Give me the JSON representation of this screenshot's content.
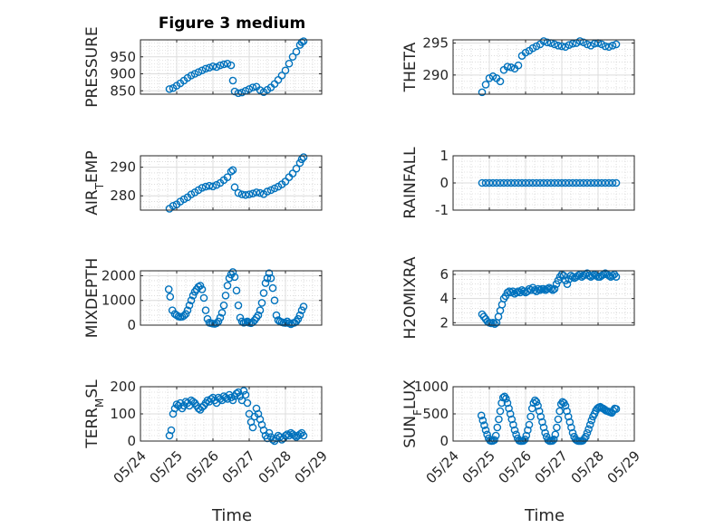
{
  "figure_title": "Figure 3 medium",
  "x_axis_label": "Time",
  "x_tick_labels": [
    "05/24",
    "05/25",
    "05/26",
    "05/27",
    "05/28",
    "05/29"
  ],
  "marker_color": "#0072BD",
  "chart_data": [
    {
      "type": "scatter",
      "title": "Figure 3 medium",
      "ylabel": "PRESSURE",
      "xlim": [
        "05/24",
        "05/29"
      ],
      "ylim": [
        840,
        1000
      ],
      "yticks": [
        850,
        900,
        950
      ],
      "x_day": [
        24.8,
        24.9,
        25.0,
        25.1,
        25.2,
        25.3,
        25.4,
        25.5,
        25.6,
        25.7,
        25.8,
        25.9,
        26.0,
        26.1,
        26.2,
        26.3,
        26.4,
        26.5,
        26.55,
        26.6,
        26.7,
        26.8,
        26.9,
        27.0,
        27.1,
        27.2,
        27.3,
        27.4,
        27.5,
        27.6,
        27.7,
        27.8,
        27.9,
        28.0,
        28.1,
        28.2,
        28.3,
        28.4,
        28.45,
        28.5
      ],
      "values": [
        855,
        858,
        865,
        872,
        880,
        888,
        895,
        900,
        905,
        910,
        915,
        918,
        922,
        920,
        925,
        928,
        930,
        925,
        880,
        848,
        843,
        845,
        850,
        855,
        860,
        862,
        852,
        846,
        853,
        860,
        870,
        882,
        895,
        910,
        930,
        950,
        965,
        985,
        993,
        996
      ]
    },
    {
      "type": "scatter",
      "ylabel": "THETA",
      "xlim": [
        "05/24",
        "05/29"
      ],
      "ylim": [
        287,
        295.5
      ],
      "yticks": [
        290,
        295
      ],
      "x_day": [
        24.8,
        24.9,
        25.0,
        25.1,
        25.2,
        25.3,
        25.4,
        25.5,
        25.6,
        25.7,
        25.8,
        25.9,
        26.0,
        26.1,
        26.2,
        26.3,
        26.4,
        26.5,
        26.6,
        26.7,
        26.8,
        26.9,
        27.0,
        27.1,
        27.2,
        27.3,
        27.4,
        27.5,
        27.6,
        27.7,
        27.8,
        27.9,
        28.0,
        28.1,
        28.2,
        28.3,
        28.4,
        28.5
      ],
      "values": [
        287.3,
        288.5,
        289.5,
        289.8,
        289.5,
        289.0,
        290.8,
        291.3,
        291.2,
        291.0,
        291.5,
        293.0,
        293.5,
        293.8,
        294.2,
        294.5,
        294.8,
        295.3,
        295.1,
        295.0,
        294.8,
        294.6,
        294.5,
        294.4,
        294.7,
        294.9,
        295.0,
        295.3,
        295.1,
        294.8,
        294.6,
        294.9,
        295.0,
        294.8,
        294.5,
        294.4,
        294.6,
        294.8
      ]
    },
    {
      "type": "scatter",
      "ylabel": "AIR_TEMP",
      "xlim": [
        "05/24",
        "05/29"
      ],
      "ylim": [
        275,
        294
      ],
      "yticks": [
        280,
        290
      ],
      "x_day": [
        24.8,
        24.9,
        25.0,
        25.1,
        25.2,
        25.3,
        25.4,
        25.5,
        25.6,
        25.7,
        25.8,
        25.9,
        26.0,
        26.1,
        26.2,
        26.3,
        26.4,
        26.5,
        26.55,
        26.6,
        26.7,
        26.8,
        26.9,
        27.0,
        27.1,
        27.2,
        27.3,
        27.4,
        27.5,
        27.6,
        27.7,
        27.8,
        27.9,
        28.0,
        28.1,
        28.2,
        28.3,
        28.4,
        28.45,
        28.5
      ],
      "values": [
        275.5,
        276.5,
        277.0,
        278.0,
        278.8,
        279.5,
        280.5,
        281.2,
        282.0,
        282.8,
        283.2,
        283.5,
        283.3,
        283.8,
        284.5,
        285.5,
        286.5,
        288.5,
        289.0,
        283.0,
        281.0,
        280.5,
        280.3,
        280.5,
        280.8,
        281.2,
        281.0,
        280.6,
        281.5,
        282.0,
        282.6,
        283.2,
        284.0,
        285.0,
        286.5,
        287.8,
        289.5,
        291.5,
        292.8,
        293.5
      ]
    },
    {
      "type": "scatter",
      "ylabel": "RAINFALL",
      "xlim": [
        "05/24",
        "05/29"
      ],
      "ylim": [
        -1,
        1
      ],
      "yticks": [
        -1,
        0,
        1
      ],
      "x_day": [
        24.8,
        24.9,
        25.0,
        25.1,
        25.2,
        25.3,
        25.4,
        25.5,
        25.6,
        25.7,
        25.8,
        25.9,
        26.0,
        26.1,
        26.2,
        26.3,
        26.4,
        26.5,
        26.6,
        26.7,
        26.8,
        26.9,
        27.0,
        27.1,
        27.2,
        27.3,
        27.4,
        27.5,
        27.6,
        27.7,
        27.8,
        27.9,
        28.0,
        28.1,
        28.2,
        28.3,
        28.4,
        28.5
      ],
      "values": [
        0,
        0,
        0,
        0,
        0,
        0,
        0,
        0,
        0,
        0,
        0,
        0,
        0,
        0,
        0,
        0,
        0,
        0,
        0,
        0,
        0,
        0,
        0,
        0,
        0,
        0,
        0,
        0,
        0,
        0,
        0,
        0,
        0,
        0,
        0,
        0,
        0,
        0
      ]
    },
    {
      "type": "scatter",
      "ylabel": "MIXDEPTH",
      "xlim": [
        "05/24",
        "05/29"
      ],
      "ylim": [
        0,
        2200
      ],
      "yticks": [
        0,
        1000,
        2000
      ],
      "x_day": [
        24.78,
        24.82,
        24.88,
        24.95,
        25.0,
        25.05,
        25.1,
        25.15,
        25.2,
        25.25,
        25.3,
        25.35,
        25.4,
        25.45,
        25.5,
        25.55,
        25.6,
        25.65,
        25.7,
        25.75,
        25.8,
        25.85,
        25.9,
        25.95,
        26.0,
        26.05,
        26.1,
        26.15,
        26.2,
        26.25,
        26.3,
        26.35,
        26.4,
        26.45,
        26.5,
        26.55,
        26.6,
        26.65,
        26.7,
        26.75,
        26.8,
        26.85,
        26.9,
        26.95,
        27.0,
        27.05,
        27.1,
        27.15,
        27.2,
        27.25,
        27.3,
        27.35,
        27.4,
        27.45,
        27.5,
        27.55,
        27.6,
        27.65,
        27.7,
        27.75,
        27.8,
        27.85,
        27.9,
        27.95,
        28.0,
        28.05,
        28.1,
        28.15,
        28.2,
        28.25,
        28.3,
        28.35,
        28.4,
        28.45,
        28.5
      ],
      "values": [
        1450,
        1150,
        600,
        450,
        400,
        350,
        330,
        340,
        380,
        450,
        600,
        800,
        1000,
        1200,
        1350,
        1450,
        1550,
        1600,
        1450,
        1100,
        600,
        250,
        100,
        80,
        60,
        50,
        80,
        150,
        300,
        500,
        800,
        1200,
        1600,
        1900,
        2050,
        2150,
        1950,
        1400,
        800,
        300,
        150,
        100,
        120,
        150,
        100,
        80,
        120,
        200,
        300,
        400,
        600,
        900,
        1300,
        1700,
        1900,
        2100,
        1900,
        1500,
        1000,
        400,
        200,
        150,
        120,
        100,
        90,
        150,
        80,
        40,
        80,
        100,
        150,
        250,
        400,
        600,
        750
      ]
    },
    {
      "type": "scatter",
      "ylabel": "H2OMIXRA",
      "xlim": [
        "05/24",
        "05/29"
      ],
      "ylim": [
        1.8,
        6.3
      ],
      "yticks": [
        2,
        4,
        6
      ],
      "x_day": [
        24.8,
        24.85,
        24.9,
        24.95,
        25.0,
        25.05,
        25.1,
        25.15,
        25.2,
        25.25,
        25.3,
        25.35,
        25.4,
        25.45,
        25.5,
        25.55,
        25.6,
        25.65,
        25.7,
        25.75,
        25.8,
        25.85,
        25.9,
        25.95,
        26.0,
        26.05,
        26.1,
        26.15,
        26.2,
        26.25,
        26.3,
        26.35,
        26.4,
        26.45,
        26.5,
        26.55,
        26.6,
        26.65,
        26.7,
        26.75,
        26.8,
        26.85,
        26.9,
        26.95,
        27.0,
        27.05,
        27.1,
        27.15,
        27.2,
        27.25,
        27.3,
        27.35,
        27.4,
        27.45,
        27.5,
        27.55,
        27.6,
        27.65,
        27.7,
        27.75,
        27.8,
        27.85,
        27.9,
        27.95,
        28.0,
        28.05,
        28.1,
        28.15,
        28.2,
        28.25,
        28.3,
        28.35,
        28.4,
        28.45,
        28.5
      ],
      "values": [
        2.7,
        2.5,
        2.3,
        2.1,
        2.0,
        1.95,
        2.0,
        1.9,
        2.0,
        2.5,
        3.0,
        3.5,
        4.0,
        4.2,
        4.5,
        4.6,
        4.5,
        4.6,
        4.4,
        4.5,
        4.6,
        4.5,
        4.7,
        4.6,
        4.5,
        4.6,
        4.8,
        4.7,
        4.9,
        4.7,
        4.6,
        4.8,
        4.7,
        4.8,
        4.8,
        4.7,
        4.8,
        4.9,
        4.8,
        4.7,
        4.8,
        5.2,
        5.5,
        5.8,
        6.0,
        5.9,
        5.5,
        5.2,
        5.6,
        5.9,
        5.8,
        5.7,
        5.8,
        5.9,
        6.0,
        5.8,
        5.9,
        6.0,
        6.1,
        5.9,
        5.8,
        5.9,
        6.0,
        5.9,
        5.8,
        5.8,
        5.9,
        6.0,
        6.1,
        6.0,
        5.9,
        5.8,
        5.9,
        6.0,
        5.8
      ]
    },
    {
      "type": "scatter",
      "ylabel": "TERR_MSL",
      "xlim": [
        "05/24",
        "05/29"
      ],
      "ylim": [
        0,
        200
      ],
      "yticks": [
        0,
        100,
        200
      ],
      "x_day": [
        24.8,
        24.85,
        24.9,
        24.95,
        25.0,
        25.05,
        25.1,
        25.15,
        25.2,
        25.25,
        25.3,
        25.35,
        25.4,
        25.45,
        25.5,
        25.55,
        25.6,
        25.65,
        25.7,
        25.75,
        25.8,
        25.85,
        25.9,
        25.95,
        26.0,
        26.05,
        26.1,
        26.15,
        26.2,
        26.25,
        26.3,
        26.35,
        26.4,
        26.45,
        26.5,
        26.55,
        26.6,
        26.65,
        26.7,
        26.75,
        26.8,
        26.85,
        26.9,
        26.95,
        27.0,
        27.05,
        27.1,
        27.15,
        27.2,
        27.25,
        27.3,
        27.35,
        27.4,
        27.45,
        27.5,
        27.55,
        27.6,
        27.65,
        27.7,
        27.75,
        27.8,
        27.85,
        27.9,
        27.95,
        28.0,
        28.05,
        28.1,
        28.15,
        28.2,
        28.25,
        28.3,
        28.35,
        28.4,
        28.45,
        28.5
      ],
      "values": [
        20,
        40,
        100,
        120,
        135,
        130,
        140,
        120,
        130,
        145,
        140,
        130,
        150,
        145,
        140,
        130,
        120,
        115,
        125,
        130,
        140,
        150,
        145,
        155,
        160,
        150,
        140,
        160,
        155,
        150,
        165,
        160,
        155,
        170,
        160,
        150,
        165,
        175,
        180,
        165,
        150,
        185,
        170,
        140,
        100,
        70,
        50,
        90,
        120,
        100,
        80,
        60,
        40,
        20,
        10,
        30,
        15,
        5,
        0,
        10,
        20,
        15,
        5,
        10,
        20,
        25,
        20,
        30,
        25,
        20,
        15,
        20,
        25,
        30,
        20
      ]
    },
    {
      "type": "scatter",
      "ylabel": "SUN_FLUX",
      "xlim": [
        "05/24",
        "05/29"
      ],
      "ylim": [
        0,
        1000
      ],
      "yticks": [
        0,
        500,
        1000
      ],
      "x_day": [
        24.78,
        24.82,
        24.86,
        24.9,
        24.94,
        24.98,
        25.02,
        25.06,
        25.1,
        25.14,
        25.18,
        25.22,
        25.26,
        25.3,
        25.34,
        25.38,
        25.42,
        25.46,
        25.5,
        25.54,
        25.58,
        25.62,
        25.66,
        25.7,
        25.74,
        25.78,
        25.82,
        25.86,
        25.9,
        25.94,
        25.98,
        26.02,
        26.06,
        26.1,
        26.14,
        26.18,
        26.22,
        26.26,
        26.3,
        26.34,
        26.38,
        26.42,
        26.46,
        26.5,
        26.54,
        26.58,
        26.62,
        26.66,
        26.7,
        26.74,
        26.78,
        26.82,
        26.86,
        26.9,
        26.94,
        26.98,
        27.02,
        27.06,
        27.1,
        27.14,
        27.18,
        27.22,
        27.26,
        27.3,
        27.34,
        27.38,
        27.42,
        27.46,
        27.5,
        27.54,
        27.58,
        27.62,
        27.66,
        27.7,
        27.74,
        27.78,
        27.82,
        27.86,
        27.9,
        27.94,
        27.98,
        28.02,
        28.06,
        28.1,
        28.14,
        28.18,
        28.22,
        28.26,
        28.3,
        28.34,
        28.38,
        28.42,
        28.46,
        28.5
      ],
      "values": [
        470,
        380,
        290,
        200,
        120,
        50,
        10,
        0,
        5,
        20,
        100,
        250,
        400,
        550,
        700,
        800,
        820,
        780,
        700,
        600,
        500,
        400,
        300,
        200,
        120,
        50,
        10,
        0,
        0,
        5,
        30,
        100,
        200,
        300,
        450,
        600,
        700,
        750,
        720,
        650,
        550,
        450,
        350,
        250,
        150,
        80,
        20,
        0,
        0,
        5,
        30,
        120,
        250,
        400,
        550,
        680,
        720,
        700,
        650,
        550,
        450,
        350,
        250,
        150,
        80,
        30,
        10,
        0,
        0,
        0,
        10,
        40,
        80,
        150,
        220,
        300,
        380,
        450,
        500,
        560,
        600,
        620,
        630,
        610,
        600,
        580,
        560,
        550,
        540,
        530,
        520,
        560,
        600,
        590
      ]
    }
  ]
}
